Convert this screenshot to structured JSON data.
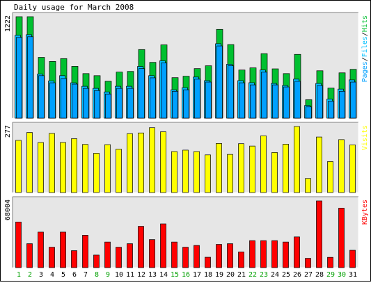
{
  "title": "Daily usage for March 2008",
  "colors": {
    "background": "#ffffff",
    "panel_bg": "#e6e6e6",
    "hits": "#00c030",
    "files": "#00c0ff",
    "pages": "#00a0ff",
    "visits": "#ffff00",
    "kbytes": "#ff0000",
    "weekday_label": "#000000",
    "weekend_label": "#00a000"
  },
  "chart_data": [
    {
      "type": "bar",
      "panel": "pages-files-hits",
      "title": "Daily usage for March 2008",
      "ymax_label": "1222",
      "ylim": [
        0,
        1222
      ],
      "legend": [
        {
          "text": "Pages",
          "color": "#00a0ff"
        },
        {
          "text": "/",
          "color": "#000000"
        },
        {
          "text": "Files",
          "color": "#00c0ff"
        },
        {
          "text": "/",
          "color": "#000000"
        },
        {
          "text": "Hits",
          "color": "#00c030"
        }
      ],
      "categories": [
        "1",
        "2",
        "3",
        "4",
        "5",
        "6",
        "7",
        "8",
        "9",
        "10",
        "11",
        "12",
        "13",
        "14",
        "15",
        "16",
        "17",
        "18",
        "19",
        "20",
        "21",
        "22",
        "23",
        "24",
        "25",
        "26",
        "27",
        "28",
        "29",
        "30",
        "31"
      ],
      "series": [
        {
          "name": "Hits",
          "values": [
            1222,
            1222,
            732,
            683,
            717,
            624,
            537,
            512,
            444,
            555,
            563,
            826,
            672,
            883,
            488,
            505,
            597,
            631,
            1069,
            886,
            580,
            606,
            777,
            594,
            537,
            768,
            222,
            571,
            362,
            546,
            588
          ]
        },
        {
          "name": "Files",
          "values": [
            998,
            1005,
            530,
            449,
            512,
            426,
            384,
            359,
            316,
            384,
            384,
            623,
            512,
            691,
            342,
            367,
            495,
            452,
            896,
            649,
            452,
            427,
            580,
            418,
            393,
            470,
            153,
            418,
            230,
            350,
            461
          ]
        },
        {
          "name": "Pages",
          "values": [
            973,
            981,
            512,
            426,
            478,
            410,
            359,
            333,
            291,
            359,
            359,
            597,
            486,
            665,
            324,
            342,
            470,
            435,
            870,
            631,
            426,
            401,
            554,
            401,
            376,
            444,
            136,
            393,
            205,
            324,
            435
          ]
        }
      ],
      "weekend_days": [
        "1",
        "2",
        "8",
        "9",
        "15",
        "16",
        "22",
        "23",
        "29",
        "30"
      ]
    },
    {
      "type": "bar",
      "panel": "visits",
      "ymax_label": "277",
      "ylim": [
        0,
        277
      ],
      "legend": [
        {
          "text": "Visits",
          "color": "#ffff00"
        }
      ],
      "categories": [
        "1",
        "2",
        "3",
        "4",
        "5",
        "6",
        "7",
        "8",
        "9",
        "10",
        "11",
        "12",
        "13",
        "14",
        "15",
        "16",
        "17",
        "18",
        "19",
        "20",
        "21",
        "22",
        "23",
        "24",
        "25",
        "26",
        "27",
        "28",
        "29",
        "30",
        "31"
      ],
      "series": [
        {
          "name": "Visits",
          "values": [
            219,
            252,
            210,
            248,
            210,
            226,
            202,
            165,
            201,
            182,
            247,
            250,
            272,
            255,
            172,
            178,
            172,
            158,
            206,
            160,
            205,
            195,
            238,
            168,
            203,
            277,
            59,
            233,
            130,
            222,
            200
          ]
        }
      ]
    },
    {
      "type": "bar",
      "panel": "kbytes",
      "ymax_label": "68004",
      "ylim": [
        0,
        68004
      ],
      "legend": [
        {
          "text": "KBytes",
          "color": "#ff0000"
        }
      ],
      "categories": [
        "1",
        "2",
        "3",
        "4",
        "5",
        "6",
        "7",
        "8",
        "9",
        "10",
        "11",
        "12",
        "13",
        "14",
        "15",
        "16",
        "17",
        "18",
        "19",
        "20",
        "21",
        "22",
        "23",
        "24",
        "25",
        "26",
        "27",
        "28",
        "29",
        "30",
        "31"
      ],
      "series": [
        {
          "name": "KBytes",
          "values": [
            46500,
            24400,
            36200,
            20800,
            36200,
            17300,
            33000,
            12800,
            26100,
            20800,
            24400,
            42100,
            28600,
            44600,
            26100,
            20800,
            22600,
            10600,
            23700,
            24400,
            16000,
            27500,
            27500,
            27500,
            26100,
            31300,
            9500,
            68004,
            10500,
            60600,
            17700
          ]
        }
      ]
    }
  ]
}
